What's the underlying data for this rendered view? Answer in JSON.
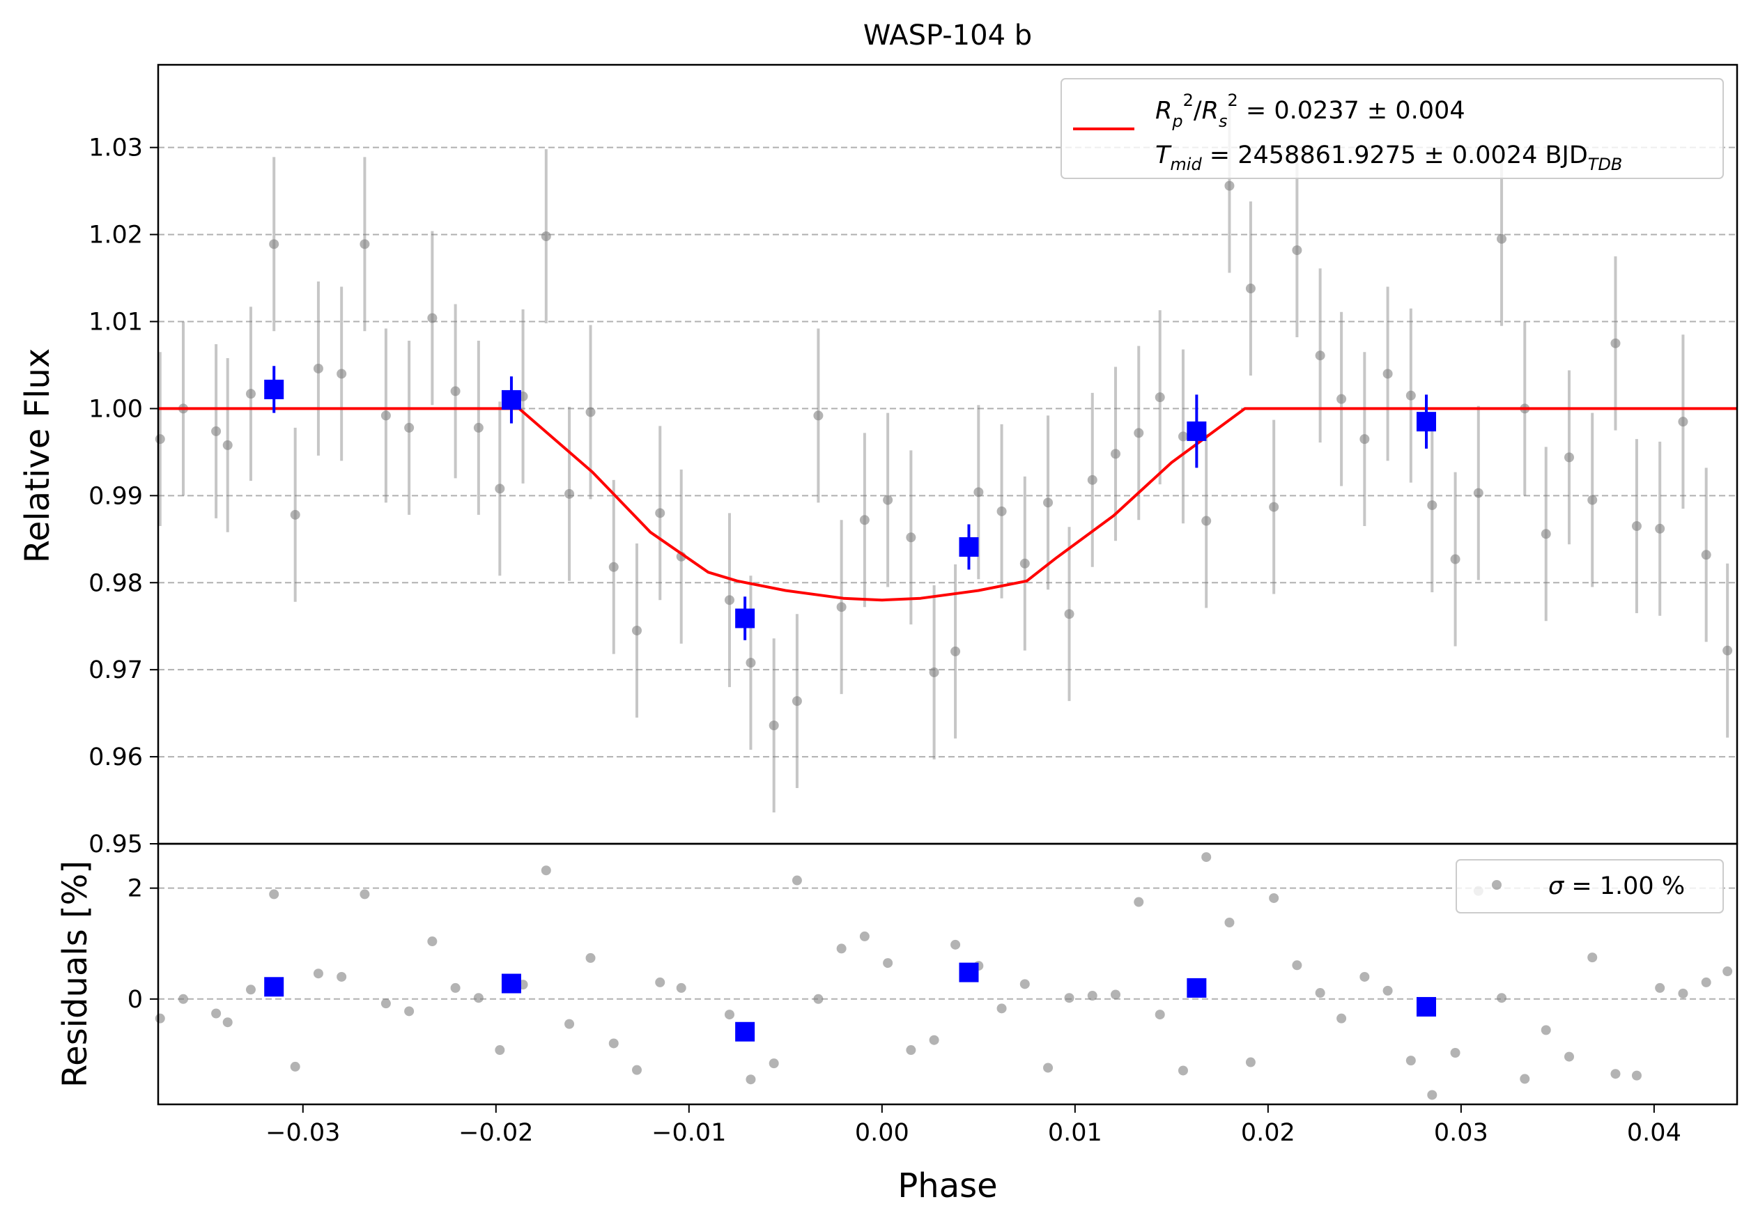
{
  "chart_data": [
    {
      "type": "scatter",
      "panel": "light curve",
      "title": "WASP-104 b",
      "xlabel": "Phase",
      "ylabel": "Relative Flux",
      "xlim": [
        -0.0375,
        0.0443
      ],
      "ylim": [
        0.95,
        1.0395
      ],
      "grid": "horizontal dashed",
      "legend_position": "top-right",
      "yticks": [
        "0.95",
        "0.96",
        "0.97",
        "0.98",
        "0.99",
        "1.00",
        "1.01",
        "1.02",
        "1.03"
      ],
      "legend": {
        "rp_label": "R",
        "rp_sub": "p",
        "rs_label": "R",
        "rs_sub": "s",
        "rp_value": " = 0.0237 ± 0.004",
        "tmid_label": "T",
        "tmid_sub": "mid",
        "tmid_value": " = 2458861.9275 ± 0.0024 BJD",
        "tmid_unit_sub": "TDB"
      },
      "series": [
        {
          "kind": "data",
          "color": "#808080",
          "x": [
            -0.0374,
            -0.0362,
            -0.0345,
            -0.0339,
            -0.0327,
            -0.0315,
            -0.0304,
            -0.0292,
            -0.028,
            -0.0268,
            -0.0257,
            -0.0245,
            -0.0233,
            -0.0221,
            -0.0209,
            -0.0198,
            -0.0186,
            -0.0174,
            -0.0162,
            -0.0151,
            -0.0139,
            -0.0127,
            -0.0115,
            -0.0104,
            -0.0079,
            -0.0068,
            -0.0056,
            -0.0044,
            -0.0033,
            -0.0021,
            -0.0009,
            0.0003,
            0.0015,
            0.0027,
            0.0038,
            0.005,
            0.0062,
            0.0074,
            0.0086,
            0.0097,
            0.0109,
            0.0121,
            0.0133,
            0.0144,
            0.0156,
            0.0168,
            0.018,
            0.0191,
            0.0203,
            0.0215,
            0.0227,
            0.0238,
            0.025,
            0.0262,
            0.0274,
            0.0285,
            0.0297,
            0.0309,
            0.0321,
            0.0333,
            0.0344,
            0.0356,
            0.0368,
            0.038,
            0.0391,
            0.0403,
            0.0415,
            0.0427,
            0.0438
          ],
          "y": [
            0.9965,
            1.0,
            0.9974,
            0.9958,
            1.0017,
            1.0189,
            0.9878,
            1.0046,
            1.004,
            1.0189,
            0.9992,
            0.9978,
            1.0104,
            1.002,
            0.9978,
            0.9908,
            1.0014,
            1.0198,
            0.9902,
            0.9996,
            0.9818,
            0.9745,
            0.988,
            0.983,
            0.978,
            0.9708,
            0.9636,
            0.9664,
            0.9992,
            0.9772,
            0.9872,
            0.9895,
            0.9852,
            0.9697,
            0.9721,
            0.9904,
            0.9882,
            0.9822,
            0.9892,
            0.9764,
            0.9918,
            0.9948,
            0.9972,
            1.0013,
            0.9968,
            0.9871,
            1.0256,
            1.0138,
            0.9887,
            1.0182,
            1.0061,
            1.0011,
            0.9965,
            1.004,
            1.0015,
            0.9889,
            0.9827,
            0.9903,
            1.0195,
            1.0,
            0.9856,
            0.9944,
            0.9895,
            1.0075,
            0.9865,
            0.9862,
            0.9985,
            0.9832,
            0.9722
          ],
          "yerr": 0.01
        },
        {
          "kind": "binned",
          "color": "#0000ff",
          "x": [
            -0.0315,
            -0.0192,
            -0.0071,
            0.0045,
            0.0163,
            0.0282
          ],
          "y": [
            1.0022,
            1.001,
            0.9759,
            0.9841,
            0.9974,
            0.9985
          ],
          "yerr": [
            0.0027,
            0.0027,
            0.0025,
            0.0026,
            0.0042,
            0.0031
          ]
        },
        {
          "kind": "model",
          "color": "#ff0000",
          "x": [
            -0.0375,
            -0.0188,
            -0.015,
            -0.012,
            -0.009,
            -0.0075,
            -0.005,
            -0.002,
            0.0,
            0.002,
            0.005,
            0.0075,
            0.009,
            0.012,
            0.015,
            0.0188,
            0.0443
          ],
          "y": [
            1.0,
            1.0,
            0.9927,
            0.9858,
            0.9812,
            0.9802,
            0.9791,
            0.9782,
            0.978,
            0.9782,
            0.9791,
            0.9802,
            0.9828,
            0.9877,
            0.9938,
            1.0,
            1.0
          ]
        }
      ]
    },
    {
      "type": "scatter",
      "panel": "residuals",
      "xlabel": "Phase",
      "ylabel": "Residuals [%]",
      "xlim": [
        -0.0375,
        0.0443
      ],
      "ylim": [
        -1.9,
        2.8
      ],
      "grid": "horizontal dashed",
      "legend_position": "top-right",
      "xticks": [
        "−0.03",
        "−0.02",
        "−0.01",
        "0.00",
        "0.01",
        "0.02",
        "0.03",
        "0.04"
      ],
      "xtick_values": [
        -0.03,
        -0.02,
        -0.01,
        0.0,
        0.01,
        0.02,
        0.03,
        0.04
      ],
      "yticks": [
        "0",
        "2"
      ],
      "ytick_values": [
        0,
        2
      ],
      "legend": {
        "sigma_symbol": "σ",
        "sigma_value": " = 1.00 %"
      },
      "series": [
        {
          "kind": "data",
          "color": "#808080",
          "x": [
            -0.0374,
            -0.0362,
            -0.0345,
            -0.0339,
            -0.0327,
            -0.0315,
            -0.0304,
            -0.0292,
            -0.028,
            -0.0268,
            -0.0257,
            -0.0245,
            -0.0233,
            -0.0221,
            -0.0209,
            -0.0198,
            -0.0186,
            -0.0174,
            -0.0162,
            -0.0151,
            -0.0139,
            -0.0127,
            -0.0115,
            -0.0104,
            -0.0079,
            -0.0068,
            -0.0056,
            -0.0044,
            -0.0033,
            -0.0021,
            -0.0009,
            0.0003,
            0.0015,
            0.0027,
            0.0038,
            0.005,
            0.0062,
            0.0074,
            0.0086,
            0.0097,
            0.0109,
            0.0121,
            0.0133,
            0.0144,
            0.0156,
            0.0168,
            0.018,
            0.0191,
            0.0203,
            0.0215,
            0.0227,
            0.0238,
            0.025,
            0.0262,
            0.0274,
            0.0285,
            0.0297,
            0.0309,
            0.0321,
            0.0333,
            0.0344,
            0.0356,
            0.0368,
            0.038,
            0.0391,
            0.0403,
            0.0415,
            0.0427,
            0.0438
          ],
          "y": [
            -0.35,
            0.0,
            -0.26,
            -0.42,
            0.17,
            1.89,
            -1.22,
            0.46,
            0.4,
            1.89,
            -0.08,
            -0.22,
            1.04,
            0.2,
            0.02,
            -0.92,
            0.26,
            2.32,
            -0.45,
            0.74,
            -0.8,
            -1.28,
            0.3,
            0.2,
            -0.28,
            -1.45,
            -1.16,
            2.14,
            0.0,
            0.91,
            1.13,
            0.65,
            -0.92,
            -0.74,
            0.98,
            0.6,
            -0.17,
            0.27,
            -1.24,
            0.02,
            0.06,
            0.08,
            1.75,
            -0.28,
            -1.29,
            2.56,
            1.38,
            -1.14,
            1.82,
            0.61,
            0.11,
            -0.35,
            0.4,
            0.15,
            -1.11,
            -1.73,
            -0.97,
            1.95,
            0.02,
            -1.44,
            -0.56,
            -1.04,
            0.75,
            -1.35,
            -1.38,
            0.2,
            0.1,
            0.3,
            0.5
          ]
        },
        {
          "kind": "binned",
          "color": "#0000ff",
          "x": [
            -0.0315,
            -0.0192,
            -0.0071,
            0.0045,
            0.0163,
            0.0282
          ],
          "y": [
            0.22,
            0.28,
            -0.59,
            0.48,
            0.2,
            -0.14
          ]
        }
      ]
    }
  ]
}
